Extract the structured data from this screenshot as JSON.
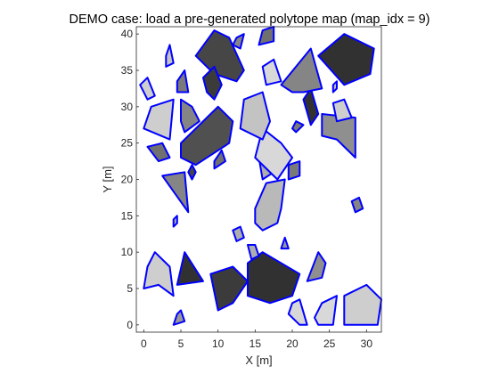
{
  "chart_data": {
    "type": "polygon-map",
    "title": "DEMO case: load a pre-generated polytope map (map_idx = 9)",
    "xlabel": "X [m]",
    "ylabel": "Y [m]",
    "xlim": [
      -1,
      32
    ],
    "ylim": [
      -1,
      41
    ],
    "xticks": [
      0,
      5,
      10,
      15,
      20,
      25,
      30
    ],
    "yticks": [
      0,
      5,
      10,
      15,
      20,
      25,
      30,
      35,
      40
    ],
    "grid": false,
    "edge_color": "#0000ff",
    "shade_scale": {
      "0": "#ededed",
      "1": "#1c1c1c"
    },
    "polytopes": [
      {
        "shade": 0.15,
        "vertices": [
          [
            0,
            5
          ],
          [
            2,
            5.5
          ],
          [
            4,
            4
          ],
          [
            3.5,
            8
          ],
          [
            1.5,
            10
          ],
          [
            0.5,
            8
          ]
        ]
      },
      {
        "shade": 0.9,
        "vertices": [
          [
            4.5,
            5.5
          ],
          [
            5.5,
            10
          ],
          [
            8,
            6
          ]
        ]
      },
      {
        "shade": 0.4,
        "vertices": [
          [
            4,
            0
          ],
          [
            5.5,
            0.5
          ],
          [
            5,
            2
          ],
          [
            4.5,
            1.5
          ]
        ]
      },
      {
        "shade": 0.85,
        "vertices": [
          [
            9,
            7
          ],
          [
            12,
            8
          ],
          [
            14,
            6
          ],
          [
            12,
            3
          ],
          [
            10,
            2
          ]
        ]
      },
      {
        "shade": 0.9,
        "vertices": [
          [
            14,
            8.5
          ],
          [
            16,
            10
          ],
          [
            21,
            7
          ],
          [
            20,
            4
          ],
          [
            17,
            3
          ],
          [
            14,
            4
          ]
        ]
      },
      {
        "shade": 0.1,
        "vertices": [
          [
            20,
            3
          ],
          [
            21,
            3.5
          ],
          [
            22,
            0
          ],
          [
            21,
            0
          ],
          [
            19.5,
            1.5
          ]
        ]
      },
      {
        "shade": 0.1,
        "vertices": [
          [
            24,
            3
          ],
          [
            26,
            4
          ],
          [
            25.5,
            0
          ],
          [
            23.5,
            0
          ],
          [
            23,
            1
          ]
        ]
      },
      {
        "shade": 0.15,
        "vertices": [
          [
            27,
            4
          ],
          [
            30,
            5.5
          ],
          [
            32,
            3.5
          ],
          [
            31.5,
            0
          ],
          [
            27,
            0
          ]
        ]
      },
      {
        "shade": 0.45,
        "vertices": [
          [
            22,
            6
          ],
          [
            24,
            6.5
          ],
          [
            24.5,
            8.5
          ],
          [
            23.5,
            10
          ]
        ]
      },
      {
        "shade": 0.3,
        "vertices": [
          [
            14,
            11
          ],
          [
            15,
            11
          ],
          [
            15.5,
            9.5
          ],
          [
            14.5,
            9
          ]
        ]
      },
      {
        "shade": 0.4,
        "vertices": [
          [
            18.5,
            10.5
          ],
          [
            19.5,
            10.5
          ],
          [
            19,
            12
          ]
        ]
      },
      {
        "shade": 0.25,
        "vertices": [
          [
            16,
            13
          ],
          [
            18,
            14
          ],
          [
            18.5,
            16
          ],
          [
            19,
            20
          ],
          [
            16.5,
            19.5
          ],
          [
            15,
            16
          ],
          [
            15,
            14
          ]
        ]
      },
      {
        "shade": 0.3,
        "vertices": [
          [
            16,
            20
          ],
          [
            17.5,
            21
          ],
          [
            17,
            23
          ],
          [
            15.5,
            23
          ]
        ]
      },
      {
        "shade": 0.55,
        "vertices": [
          [
            19.5,
            20
          ],
          [
            21,
            20.5
          ],
          [
            21,
            22.5
          ],
          [
            19.5,
            22
          ]
        ]
      },
      {
        "shade": 0.5,
        "vertices": [
          [
            2.5,
            20.5
          ],
          [
            5.5,
            21
          ],
          [
            6,
            15.5
          ]
        ]
      },
      {
        "shade": 0.6,
        "vertices": [
          [
            2,
            22.5
          ],
          [
            3.5,
            23
          ],
          [
            2.5,
            25
          ],
          [
            0.5,
            24.5
          ]
        ]
      },
      {
        "shade": 0.8,
        "vertices": [
          [
            6.5,
            20
          ],
          [
            7,
            21
          ],
          [
            6.5,
            22
          ],
          [
            6,
            21
          ]
        ]
      },
      {
        "shade": 0.6,
        "vertices": [
          [
            9.5,
            22.5
          ],
          [
            10.5,
            24
          ],
          [
            11,
            22.5
          ],
          [
            9.5,
            21.5
          ]
        ]
      },
      {
        "shade": 0.75,
        "vertices": [
          [
            5,
            25
          ],
          [
            10,
            30
          ],
          [
            12,
            28
          ],
          [
            11.5,
            25
          ],
          [
            7,
            22
          ],
          [
            5,
            23
          ]
        ]
      },
      {
        "shade": 0.1,
        "vertices": [
          [
            16,
            27
          ],
          [
            18.5,
            25
          ],
          [
            20,
            23
          ],
          [
            18,
            20
          ],
          [
            15,
            23
          ]
        ]
      },
      {
        "shade": 0.45,
        "vertices": [
          [
            24,
            29
          ],
          [
            28.5,
            28.5
          ],
          [
            28.5,
            23
          ],
          [
            26,
            25.5
          ],
          [
            24,
            26
          ]
        ]
      },
      {
        "shade": 0.2,
        "vertices": [
          [
            13,
            27
          ],
          [
            16,
            25.5
          ],
          [
            17,
            28
          ],
          [
            16,
            32
          ],
          [
            13.5,
            31
          ]
        ]
      },
      {
        "shade": 0.15,
        "vertices": [
          [
            0,
            27
          ],
          [
            3.5,
            25.5
          ],
          [
            4,
            31
          ],
          [
            1,
            30
          ]
        ]
      },
      {
        "shade": 0.5,
        "vertices": [
          [
            5,
            31
          ],
          [
            6.5,
            30
          ],
          [
            7.5,
            28
          ],
          [
            5.5,
            26.5
          ],
          [
            5,
            28
          ]
        ]
      },
      {
        "shade": 0.15,
        "vertices": [
          [
            25.5,
            30.5
          ],
          [
            27,
            31
          ],
          [
            28,
            28.5
          ],
          [
            26,
            28
          ]
        ]
      },
      {
        "shade": 0.55,
        "vertices": [
          [
            20,
            27
          ],
          [
            20.5,
            26.5
          ],
          [
            21.5,
            27.5
          ],
          [
            20.5,
            28
          ]
        ]
      },
      {
        "shade": 0.9,
        "vertices": [
          [
            21.5,
            31
          ],
          [
            22.5,
            32.5
          ],
          [
            23.5,
            29
          ],
          [
            22.5,
            27.5
          ]
        ]
      },
      {
        "shade": 0.5,
        "vertices": [
          [
            18.5,
            33
          ],
          [
            22.5,
            38
          ],
          [
            24,
            32.5
          ],
          [
            21.5,
            32
          ],
          [
            20,
            32
          ]
        ]
      },
      {
        "shade": 0.1,
        "vertices": [
          [
            16,
            35.5
          ],
          [
            17.5,
            36.5
          ],
          [
            18.5,
            33.5
          ],
          [
            16.5,
            33
          ]
        ]
      },
      {
        "shade": 0.9,
        "vertices": [
          [
            23.5,
            37
          ],
          [
            27,
            40
          ],
          [
            31,
            38
          ],
          [
            30.5,
            34.5
          ],
          [
            27,
            33
          ]
        ]
      },
      {
        "shade": 0.8,
        "vertices": [
          [
            7,
            37
          ],
          [
            9.5,
            40.5
          ],
          [
            11.5,
            39.5
          ],
          [
            13.5,
            35
          ],
          [
            12.5,
            33.5
          ],
          [
            9.5,
            34.5
          ]
        ]
      },
      {
        "shade": 0.85,
        "vertices": [
          [
            8,
            34
          ],
          [
            9.5,
            35.5
          ],
          [
            10.5,
            33
          ],
          [
            9.5,
            31
          ],
          [
            8.5,
            32
          ]
        ]
      },
      {
        "shade": 0.5,
        "vertices": [
          [
            12.5,
            39.5
          ],
          [
            13.5,
            40
          ],
          [
            13,
            38
          ],
          [
            12,
            38.5
          ]
        ]
      },
      {
        "shade": 0.55,
        "vertices": [
          [
            4.5,
            33.5
          ],
          [
            5.5,
            35
          ],
          [
            6,
            32
          ],
          [
            4.5,
            32
          ]
        ]
      },
      {
        "shade": 0.2,
        "vertices": [
          [
            3,
            37
          ],
          [
            3.5,
            38.5
          ],
          [
            4,
            36
          ],
          [
            3,
            35.5
          ]
        ]
      },
      {
        "shade": 0.15,
        "vertices": [
          [
            -0.5,
            33
          ],
          [
            0.5,
            34
          ],
          [
            1.5,
            31.5
          ],
          [
            0.5,
            31
          ]
        ]
      },
      {
        "shade": 0.6,
        "vertices": [
          [
            16,
            40.5
          ],
          [
            17.5,
            41
          ],
          [
            17.5,
            39
          ],
          [
            15.5,
            38.5
          ]
        ]
      },
      {
        "shade": 0.25,
        "vertices": [
          [
            25.5,
            33
          ],
          [
            26,
            33.5
          ],
          [
            26,
            32.5
          ],
          [
            25.5,
            32
          ]
        ]
      },
      {
        "shade": 0.5,
        "vertices": [
          [
            28,
            17
          ],
          [
            29,
            17.5
          ],
          [
            29.5,
            16
          ],
          [
            28.5,
            15.5
          ]
        ]
      },
      {
        "shade": 0.3,
        "vertices": [
          [
            12,
            13
          ],
          [
            13,
            13.5
          ],
          [
            13.5,
            12
          ],
          [
            12.5,
            11.5
          ]
        ]
      },
      {
        "shade": 0.3,
        "vertices": [
          [
            4,
            14.5
          ],
          [
            4.5,
            15
          ],
          [
            4.5,
            14
          ],
          [
            4,
            13.5
          ]
        ]
      }
    ]
  }
}
